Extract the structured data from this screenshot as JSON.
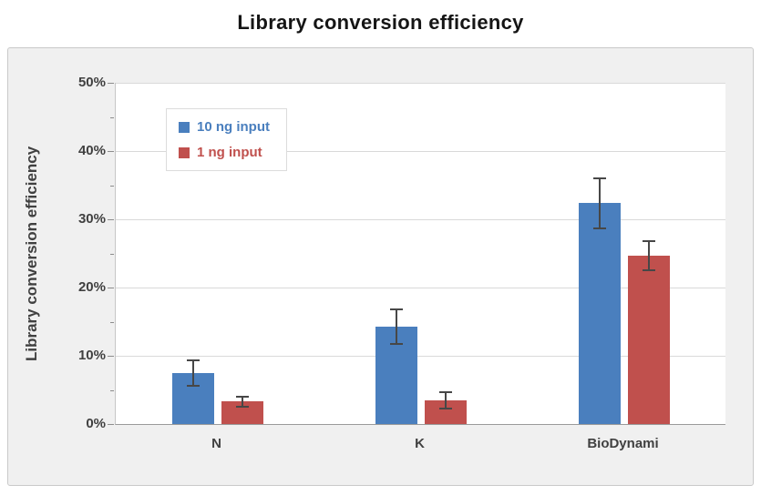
{
  "chart_data": {
    "type": "bar",
    "title": "Library conversion efficiency",
    "ylabel": "Library conversion efficiency",
    "categories": [
      "N",
      "K",
      "BioDynami"
    ],
    "series": [
      {
        "name": "10 ng input",
        "color": "#4a7fbe",
        "values": [
          7.5,
          14.3,
          32.4
        ],
        "errors": [
          2.0,
          2.7,
          3.8
        ]
      },
      {
        "name": "1 ng input",
        "color": "#c0504d",
        "values": [
          3.3,
          3.5,
          24.7
        ],
        "errors": [
          0.9,
          1.3,
          2.3
        ]
      }
    ],
    "ylim": [
      0,
      50
    ],
    "ytick_step": 10,
    "ytick_suffix": "%",
    "grid": true,
    "error_bars": true,
    "legend_position": "top-left-inside"
  }
}
